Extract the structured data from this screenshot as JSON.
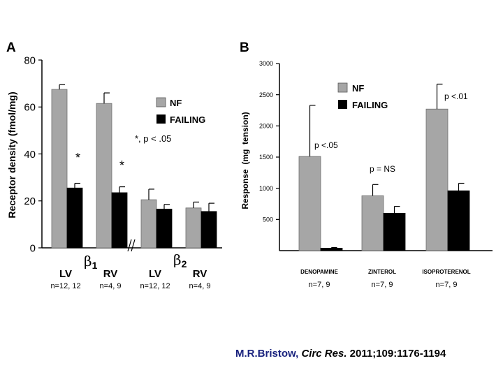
{
  "panels": {
    "a_label": "A",
    "b_label": "B"
  },
  "colors": {
    "nf": "#a6a6a6",
    "failing": "#000000"
  },
  "chart_data": [
    {
      "type": "bar",
      "panel": "A",
      "ylabel": "Receptor density (fmol/mg)",
      "ylim": [
        0,
        80
      ],
      "yticks": [
        0,
        20,
        40,
        60,
        80
      ],
      "categories": [
        "LV",
        "RV",
        "LV",
        "RV"
      ],
      "category_n": [
        "n=12, 12",
        "n=4, 9",
        "n=12, 12",
        "n=4, 9"
      ],
      "receptor_groups": [
        {
          "symbol": "β",
          "subscript": "1"
        },
        {
          "symbol": "β",
          "subscript": "2"
        }
      ],
      "series": [
        {
          "name": "NF",
          "values": [
            67.5,
            61.5,
            20.5,
            17
          ],
          "errors": [
            2,
            4.5,
            4.5,
            2.5
          ]
        },
        {
          "name": "FAILING",
          "values": [
            25.5,
            23.5,
            16.5,
            15.5
          ],
          "errors": [
            2,
            2.5,
            2,
            3.5
          ]
        }
      ],
      "significance_marks": [
        "*",
        "*"
      ],
      "annotation": "*, p < .05",
      "axis_break": "//"
    },
    {
      "type": "bar",
      "panel": "B",
      "ylabel": "Response  (mg  tension)",
      "ylim": [
        0,
        3000
      ],
      "yticks": [
        500,
        1000,
        1500,
        2000,
        2500,
        3000
      ],
      "categories": [
        "DENOPAMINE",
        "ZINTEROL",
        "ISOPROTERENOL"
      ],
      "category_n": [
        "n=7, 9",
        "n=7, 9",
        "n=7, 9"
      ],
      "series": [
        {
          "name": "NF",
          "values": [
            1510,
            880,
            2270
          ],
          "errors": [
            820,
            180,
            400
          ]
        },
        {
          "name": "FAILING",
          "values": [
            40,
            600,
            960
          ],
          "errors": [
            10,
            110,
            120
          ]
        }
      ],
      "p_values": [
        "p <.05",
        "p = NS",
        "p <.01"
      ]
    }
  ],
  "citation": {
    "author": "M.R.Bristow,",
    "journal": "Circ Res.",
    "details": "2011;109:1176-1194"
  }
}
